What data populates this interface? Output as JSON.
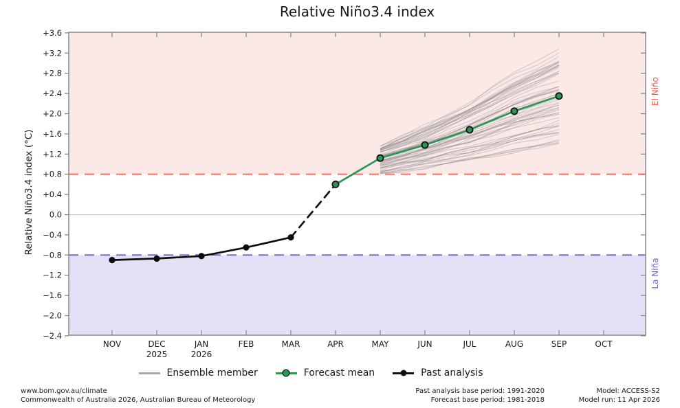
{
  "chart_data": {
    "type": "line",
    "title": "Relative Niño3.4 index",
    "ylabel": "Relative Niño3.4 index (°C)",
    "categories": [
      "NOV",
      "DEC",
      "JAN",
      "FEB",
      "MAR",
      "APR",
      "MAY",
      "JUN",
      "JUL",
      "AUG",
      "SEP",
      "OCT"
    ],
    "category_sub_labels": [
      "",
      "2025",
      "2026",
      "",
      "",
      "",
      "",
      "",
      "",
      "",
      "",
      ""
    ],
    "ylim": [
      -2.4,
      3.6
    ],
    "ytick_step": 0.4,
    "grid": "zero-line-only",
    "legend_position": "bottom-center",
    "bands": {
      "el_nino": {
        "label": "El Niño",
        "threshold": 0.8,
        "fill": "#fbe9e8",
        "line_color": "#f4786e",
        "text_color": "#e25d55"
      },
      "la_nina": {
        "label": "La Niña",
        "threshold": -0.8,
        "fill": "#e3e1f6",
        "line_color": "#7b73c4",
        "text_color": "#6b64b8"
      }
    },
    "series": [
      {
        "name": "Past analysis",
        "color": "#0d0d0d",
        "style": "solid",
        "marker": "filled",
        "months": [
          "NOV",
          "DEC",
          "JAN",
          "FEB",
          "MAR"
        ],
        "values": [
          -0.9,
          -0.87,
          -0.82,
          -0.65,
          -0.45
        ]
      },
      {
        "name": "Transition",
        "color": "#0d0d0d",
        "style": "dashed",
        "marker": "none",
        "months": [
          "MAR",
          "APR"
        ],
        "values": [
          -0.45,
          0.6
        ]
      },
      {
        "name": "Forecast mean",
        "color": "#2a9658",
        "style": "solid",
        "marker": "edged",
        "months": [
          "APR",
          "MAY",
          "JUN",
          "JUL",
          "AUG",
          "SEP"
        ],
        "values": [
          0.6,
          1.12,
          1.38,
          1.68,
          2.05,
          2.35
        ]
      }
    ],
    "ensemble": {
      "name": "Ensemble member",
      "color": "rgba(125,125,125,0.30)",
      "count": 60,
      "months": [
        "MAY",
        "JUN",
        "JUL",
        "AUG",
        "SEP"
      ],
      "mean": [
        1.12,
        1.38,
        1.68,
        2.05,
        2.35
      ],
      "spread": [
        0.3,
        0.42,
        0.58,
        0.78,
        0.95
      ]
    },
    "legend": [
      "Ensemble member",
      "Forecast mean",
      "Past analysis"
    ]
  },
  "footer": {
    "left": [
      "www.bom.gov.au/climate",
      "Commonwealth of Australia 2026, Australian Bureau of Meteorology"
    ],
    "center": [
      "Past analysis base period: 1991-2020",
      "Forecast base period: 1981-2018"
    ],
    "right": [
      "Model: ACCESS-S2",
      "Model run: 11 Apr 2026"
    ]
  }
}
